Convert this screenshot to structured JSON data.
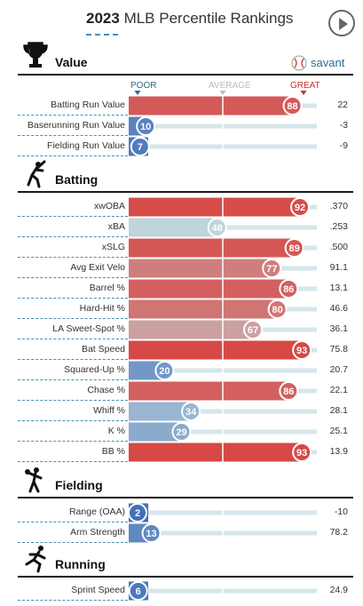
{
  "header": {
    "year": "2023",
    "title": "MLB Percentile Rankings"
  },
  "scale": {
    "poor": "POOR",
    "average": "AVERAGE",
    "great": "GREAT",
    "poor_color": "#2b6c8e",
    "average_color": "#bbbbbb",
    "great_color": "#c9302c"
  },
  "brand": {
    "name": "savant"
  },
  "colors": {
    "track": "#d6e6ea",
    "divider": "#ffffff"
  },
  "sections": [
    {
      "id": "value",
      "title": "Value",
      "icon": "trophy-icon",
      "rows": [
        {
          "label": "Batting Run Value",
          "percentile": 88,
          "value": "22"
        },
        {
          "label": "Baserunning Run Value",
          "percentile": 10,
          "value": "-3"
        },
        {
          "label": "Fielding Run Value",
          "percentile": 7,
          "value": "-9"
        }
      ]
    },
    {
      "id": "batting",
      "title": "Batting",
      "icon": "batter-icon",
      "rows": [
        {
          "label": "xwOBA",
          "percentile": 92,
          "value": ".370"
        },
        {
          "label": "xBA",
          "percentile": 48,
          "value": ".253"
        },
        {
          "label": "xSLG",
          "percentile": 89,
          "value": ".500"
        },
        {
          "label": "Avg Exit Velo",
          "percentile": 77,
          "value": "91.1"
        },
        {
          "label": "Barrel %",
          "percentile": 86,
          "value": "13.1"
        },
        {
          "label": "Hard-Hit %",
          "percentile": 80,
          "value": "46.6"
        },
        {
          "label": "LA Sweet-Spot %",
          "percentile": 67,
          "value": "36.1"
        },
        {
          "label": "Bat Speed",
          "percentile": 93,
          "value": "75.8"
        },
        {
          "label": "Squared-Up %",
          "percentile": 20,
          "value": "20.7"
        },
        {
          "label": "Chase %",
          "percentile": 86,
          "value": "22.1"
        },
        {
          "label": "Whiff %",
          "percentile": 34,
          "value": "28.1"
        },
        {
          "label": "K %",
          "percentile": 29,
          "value": "25.1"
        },
        {
          "label": "BB %",
          "percentile": 93,
          "value": "13.9"
        }
      ]
    },
    {
      "id": "fielding",
      "title": "Fielding",
      "icon": "fielder-icon",
      "rows": [
        {
          "label": "Range (OAA)",
          "percentile": 2,
          "value": "-10"
        },
        {
          "label": "Arm Strength",
          "percentile": 13,
          "value": "78.2"
        }
      ]
    },
    {
      "id": "running",
      "title": "Running",
      "icon": "runner-icon",
      "rows": [
        {
          "label": "Sprint Speed",
          "percentile": 6,
          "value": "24.9"
        }
      ]
    }
  ],
  "chart_data": {
    "type": "bar",
    "title": "2023 MLB Percentile Rankings",
    "xlim": [
      0,
      100
    ],
    "categories": [
      "Batting Run Value",
      "Baserunning Run Value",
      "Fielding Run Value",
      "xwOBA",
      "xBA",
      "xSLG",
      "Avg Exit Velo",
      "Barrel %",
      "Hard-Hit %",
      "LA Sweet-Spot %",
      "Bat Speed",
      "Squared-Up %",
      "Chase %",
      "Whiff %",
      "K %",
      "BB %",
      "Range (OAA)",
      "Arm Strength",
      "Sprint Speed"
    ],
    "series": [
      {
        "values": [
          88,
          10,
          7,
          92,
          48,
          89,
          77,
          86,
          80,
          67,
          93,
          20,
          86,
          34,
          29,
          93,
          2,
          13,
          6
        ]
      }
    ],
    "stat_values": [
      "22",
      "-3",
      "-9",
      ".370",
      ".253",
      ".500",
      "91.1",
      "13.1",
      "46.6",
      "36.1",
      "75.8",
      "20.7",
      "22.1",
      "28.1",
      "25.1",
      "13.9",
      "-10",
      "78.2",
      "24.9"
    ]
  }
}
